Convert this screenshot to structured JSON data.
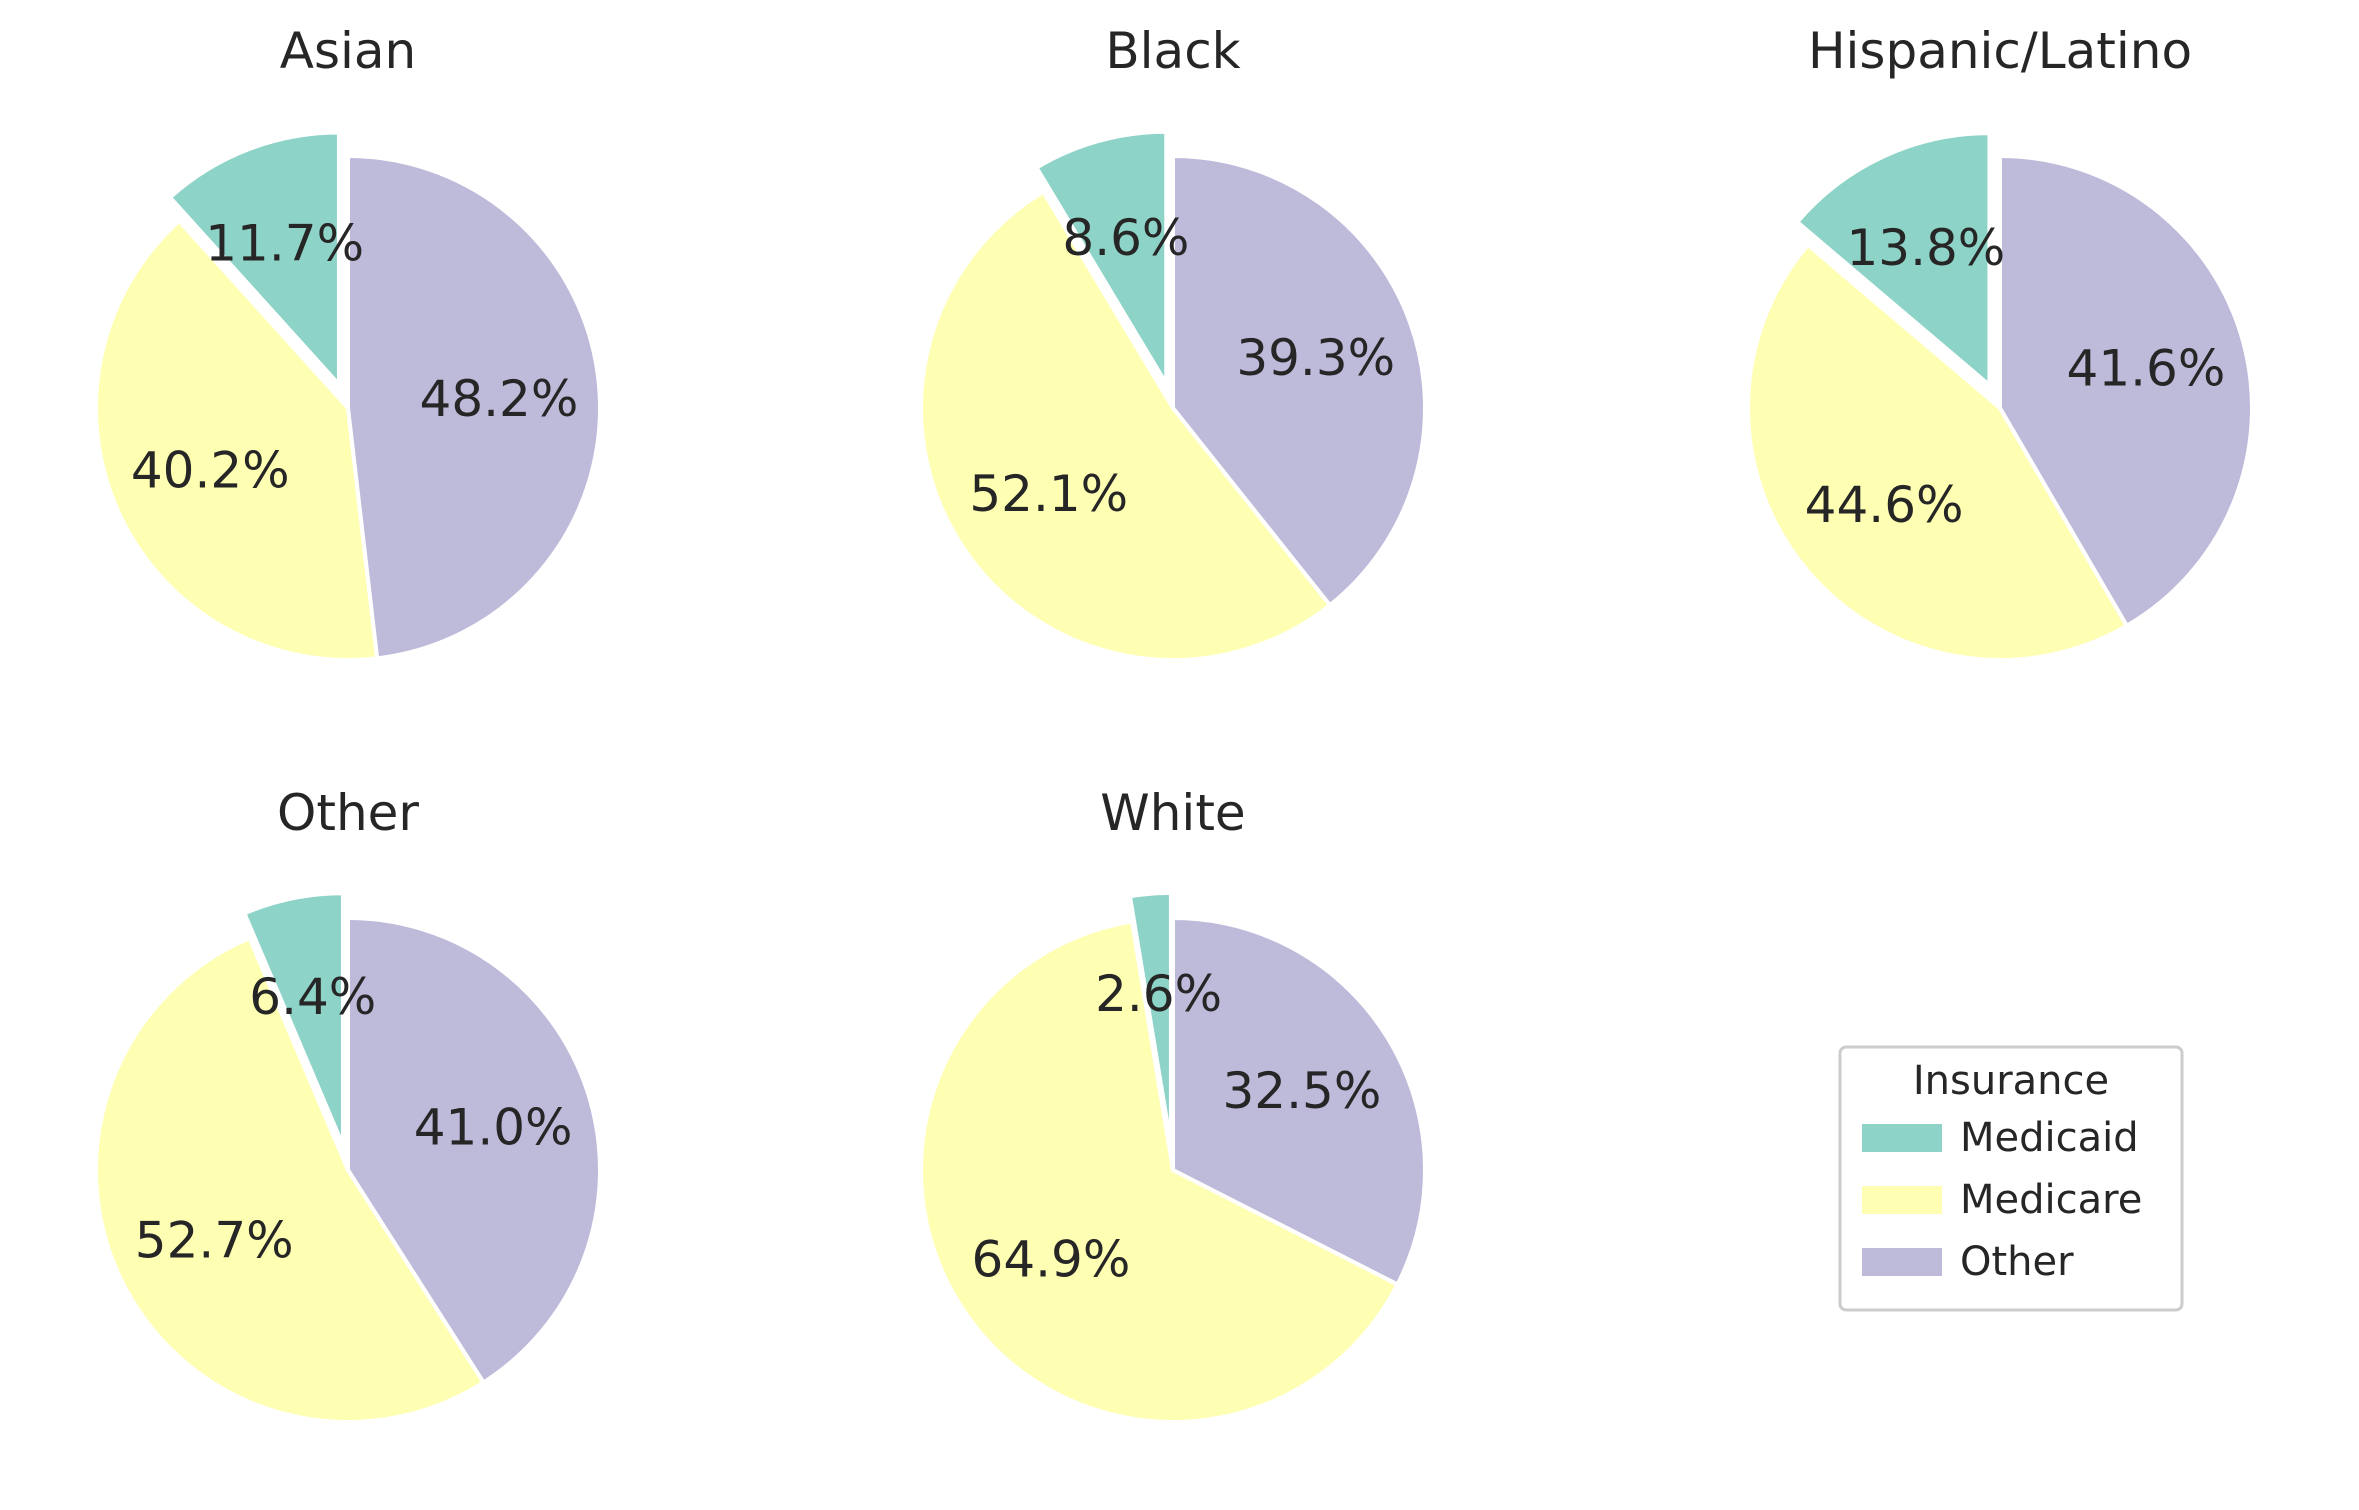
{
  "chart_data": {
    "type": "pie",
    "categories": [
      "Medicaid",
      "Medicare",
      "Other"
    ],
    "colors": {
      "Medicaid": "#8dd3c7",
      "Medicare": "#ffffb3",
      "Other": "#bebada"
    },
    "explode": {
      "Medicaid": 0.1,
      "Medicare": 0,
      "Other": 0
    },
    "start_angle_deg": 90,
    "direction": "counterclockwise",
    "pies": [
      {
        "title": "Asian",
        "values": [
          11.7,
          40.2,
          48.2
        ],
        "labels": [
          "11.7%",
          "40.2%",
          "48.2%"
        ]
      },
      {
        "title": "Black",
        "values": [
          8.6,
          52.1,
          39.3
        ],
        "labels": [
          "8.6%",
          "52.1%",
          "39.3%"
        ]
      },
      {
        "title": "Hispanic/Latino",
        "values": [
          13.8,
          44.6,
          41.6
        ],
        "labels": [
          "13.8%",
          "44.6%",
          "41.6%"
        ]
      },
      {
        "title": "Other",
        "values": [
          6.4,
          52.7,
          41.0
        ],
        "labels": [
          "6.4%",
          "52.7%",
          "41.0%"
        ]
      },
      {
        "title": "White",
        "values": [
          2.6,
          64.9,
          32.5
        ],
        "labels": [
          "2.6%",
          "64.9%",
          "32.5%"
        ]
      }
    ],
    "legend": {
      "title": "Insurance",
      "entries": [
        "Medicaid",
        "Medicare",
        "Other"
      ],
      "placement": "bottom-right"
    }
  }
}
